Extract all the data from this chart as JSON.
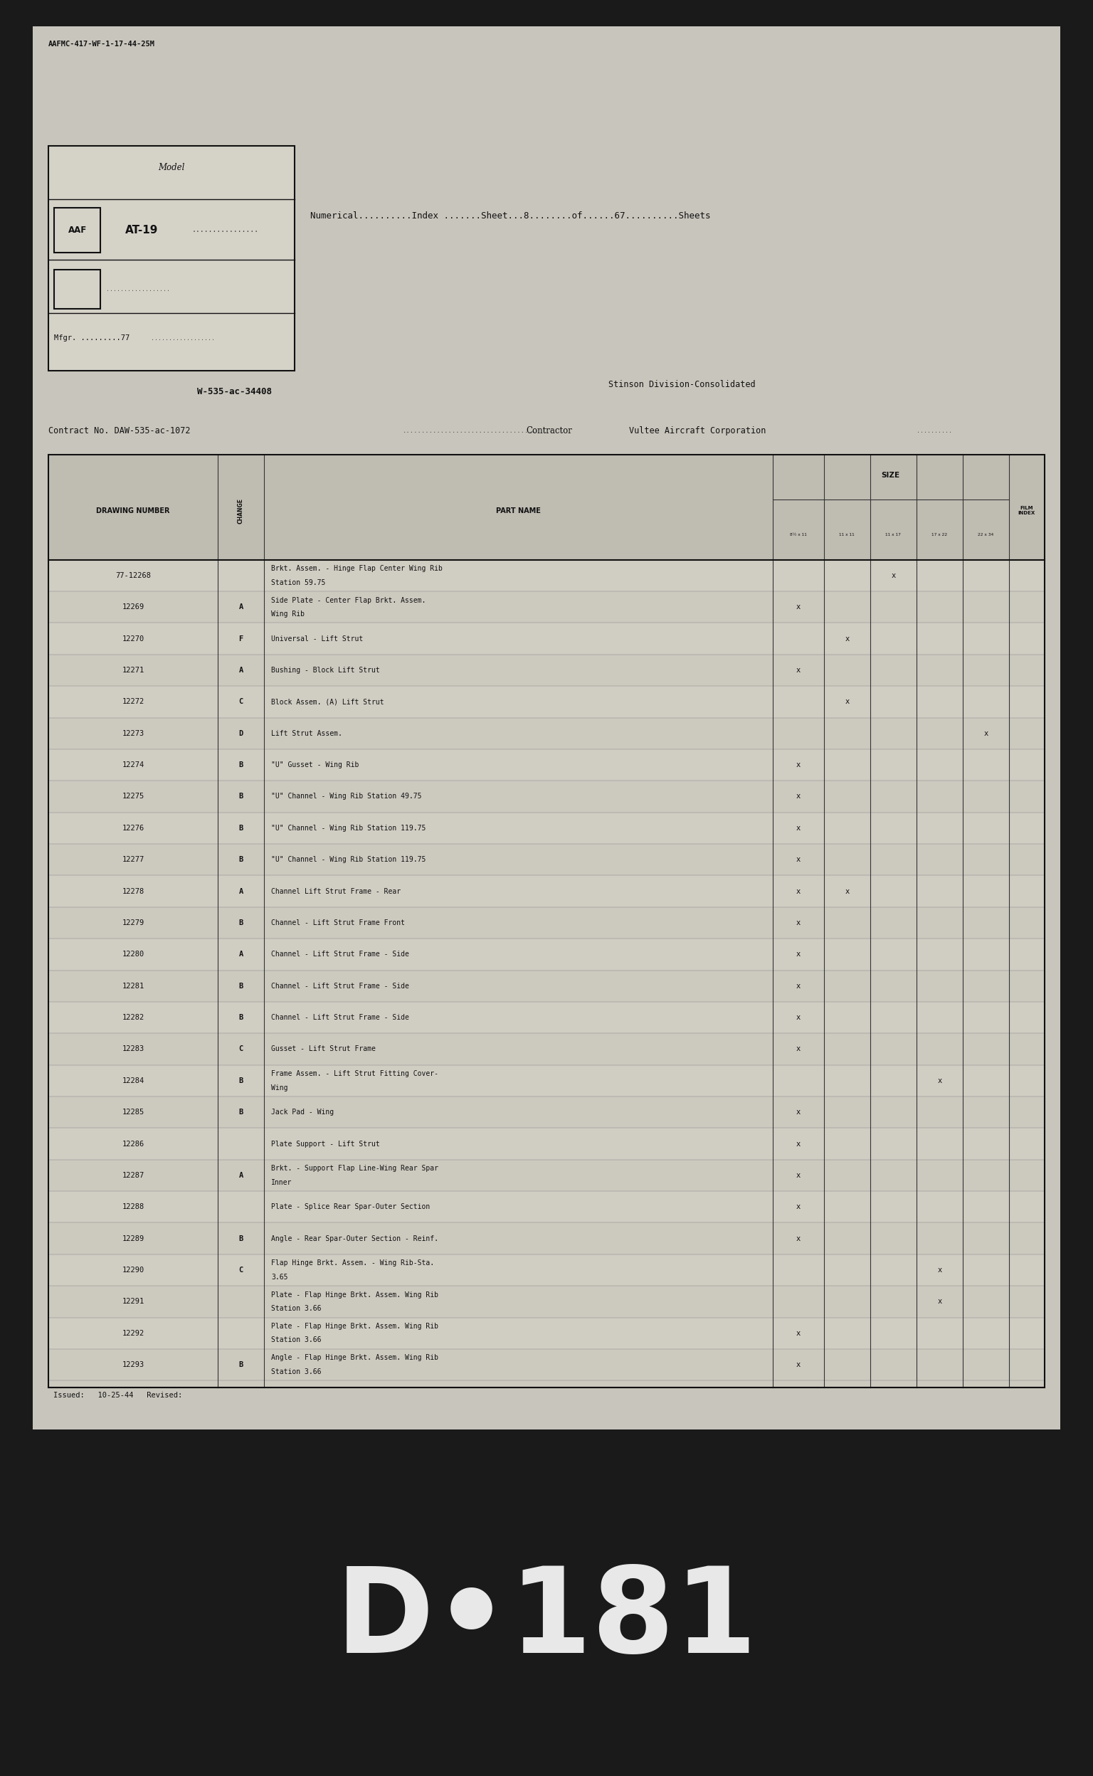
{
  "outer_bg": "#1a1a1a",
  "paper_color": "#c8c5bc",
  "paper_inner_color": "#d5d2c8",
  "top_label": "AAFMC-417-WF-1-17-44-25M",
  "model_label": "Model",
  "model_aaf": "AAF",
  "model_name": "AT-19",
  "mfgr_label": "Mfgr. .........77",
  "numerical_line": "Numerical..........Index .......Sheet...8........of......67..........Sheets",
  "contract_line1": "W-535-ac-34408",
  "contract_line2": "Contract No. DAW-535-ac-1072",
  "contractor_label": "Contractor",
  "stinson_line": "Stinson Division-Consolidated",
  "vultee_line": "Vultee Aircraft Corporation",
  "col_drawing": "DRAWING NUMBER",
  "col_change": "CHANGE",
  "col_part": "PART NAME",
  "col_size": "SIZE",
  "size_cols": [
    "8½ x 11",
    "11 x 11",
    "11 x 17",
    "17 x 22",
    "22 x 34"
  ],
  "col_film": "FILM\nINDEX",
  "issued_line": "Issued:   10-25-44   Revised:",
  "rows": [
    {
      "num": "77-12268",
      "change": "",
      "part": "Brkt. Assem. - Hinge Flap Center Wing Rib\nStation 59.75",
      "sizes": [
        0,
        0,
        1,
        0,
        0,
        0
      ]
    },
    {
      "num": "12269",
      "change": "A",
      "part": "Side Plate - Center Flap Brkt. Assem.\nWing Rib",
      "sizes": [
        1,
        0,
        0,
        0,
        0,
        0
      ]
    },
    {
      "num": "12270",
      "change": "F",
      "part": "Universal - Lift Strut",
      "sizes": [
        0,
        1,
        0,
        0,
        0,
        0
      ]
    },
    {
      "num": "12271",
      "change": "A",
      "part": "Bushing - Block Lift Strut",
      "sizes": [
        1,
        0,
        0,
        0,
        0,
        0
      ]
    },
    {
      "num": "12272",
      "change": "C",
      "part": "Block Assem. (A) Lift Strut",
      "sizes": [
        0,
        1,
        0,
        0,
        0,
        0
      ]
    },
    {
      "num": "12273",
      "change": "D",
      "part": "Lift Strut Assem.",
      "sizes": [
        0,
        0,
        0,
        0,
        1,
        0
      ]
    },
    {
      "num": "12274",
      "change": "B",
      "part": "\"U\" Gusset - Wing Rib",
      "sizes": [
        1,
        0,
        0,
        0,
        0,
        0
      ]
    },
    {
      "num": "12275",
      "change": "B",
      "part": "\"U\" Channel - Wing Rib Station 49.75",
      "sizes": [
        1,
        0,
        0,
        0,
        0,
        0
      ]
    },
    {
      "num": "12276",
      "change": "B",
      "part": "\"U\" Channel - Wing Rib Station 119.75",
      "sizes": [
        1,
        0,
        0,
        0,
        0,
        0
      ]
    },
    {
      "num": "12277",
      "change": "B",
      "part": "\"U\" Channel - Wing Rib Station 119.75",
      "sizes": [
        1,
        0,
        0,
        0,
        0,
        0
      ]
    },
    {
      "num": "12278",
      "change": "A",
      "part": "Channel Lift Strut Frame - Rear",
      "sizes": [
        1,
        1,
        0,
        0,
        0,
        0
      ]
    },
    {
      "num": "12279",
      "change": "B",
      "part": "Channel - Lift Strut Frame Front",
      "sizes": [
        1,
        0,
        0,
        0,
        0,
        0
      ]
    },
    {
      "num": "12280",
      "change": "A",
      "part": "Channel - Lift Strut Frame - Side",
      "sizes": [
        1,
        0,
        0,
        0,
        0,
        0
      ]
    },
    {
      "num": "12281",
      "change": "B",
      "part": "Channel - Lift Strut Frame - Side",
      "sizes": [
        1,
        0,
        0,
        0,
        0,
        0
      ]
    },
    {
      "num": "12282",
      "change": "B",
      "part": "Channel - Lift Strut Frame - Side",
      "sizes": [
        1,
        0,
        0,
        0,
        0,
        0
      ]
    },
    {
      "num": "12283",
      "change": "C",
      "part": "Gusset - Lift Strut Frame",
      "sizes": [
        1,
        0,
        0,
        0,
        0,
        0
      ]
    },
    {
      "num": "12284",
      "change": "B",
      "part": "Frame Assem. - Lift Strut Fitting Cover-\nWing",
      "sizes": [
        0,
        0,
        0,
        1,
        0,
        0
      ]
    },
    {
      "num": "12285",
      "change": "B",
      "part": "Jack Pad - Wing",
      "sizes": [
        1,
        0,
        0,
        0,
        0,
        0
      ]
    },
    {
      "num": "12286",
      "change": "",
      "part": "Plate Support - Lift Strut",
      "sizes": [
        1,
        0,
        0,
        0,
        0,
        0
      ]
    },
    {
      "num": "12287",
      "change": "A",
      "part": "Brkt. - Support Flap Line-Wing Rear Spar\nInner",
      "sizes": [
        1,
        0,
        0,
        0,
        0,
        0
      ]
    },
    {
      "num": "12288",
      "change": "",
      "part": "Plate - Splice Rear Spar-Outer Section",
      "sizes": [
        1,
        0,
        0,
        0,
        0,
        0
      ]
    },
    {
      "num": "12289",
      "change": "B",
      "part": "Angle - Rear Spar-Outer Section - Reinf.",
      "sizes": [
        1,
        0,
        0,
        0,
        0,
        0
      ]
    },
    {
      "num": "12290",
      "change": "C",
      "part": "Flap Hinge Brkt. Assem. - Wing Rib-Sta.\n3.65",
      "sizes": [
        0,
        0,
        0,
        1,
        0,
        0
      ]
    },
    {
      "num": "12291",
      "change": "",
      "part": "Plate - Flap Hinge Brkt. Assem. Wing Rib\nStation 3.66",
      "sizes": [
        0,
        0,
        0,
        1,
        0,
        0
      ]
    },
    {
      "num": "12292",
      "change": "",
      "part": "Plate - Flap Hinge Brkt. Assem. Wing Rib\nStation 3.66",
      "sizes": [
        1,
        0,
        0,
        0,
        0,
        0
      ]
    },
    {
      "num": "12293",
      "change": "B",
      "part": "Angle - Flap Hinge Brkt. Assem. Wing Rib\nStation 3.66",
      "sizes": [
        1,
        0,
        0,
        0,
        0,
        0
      ]
    }
  ],
  "bottom_label": "D•181",
  "bottom_bg": "#111111",
  "bottom_text_color": "#e8e8e8"
}
